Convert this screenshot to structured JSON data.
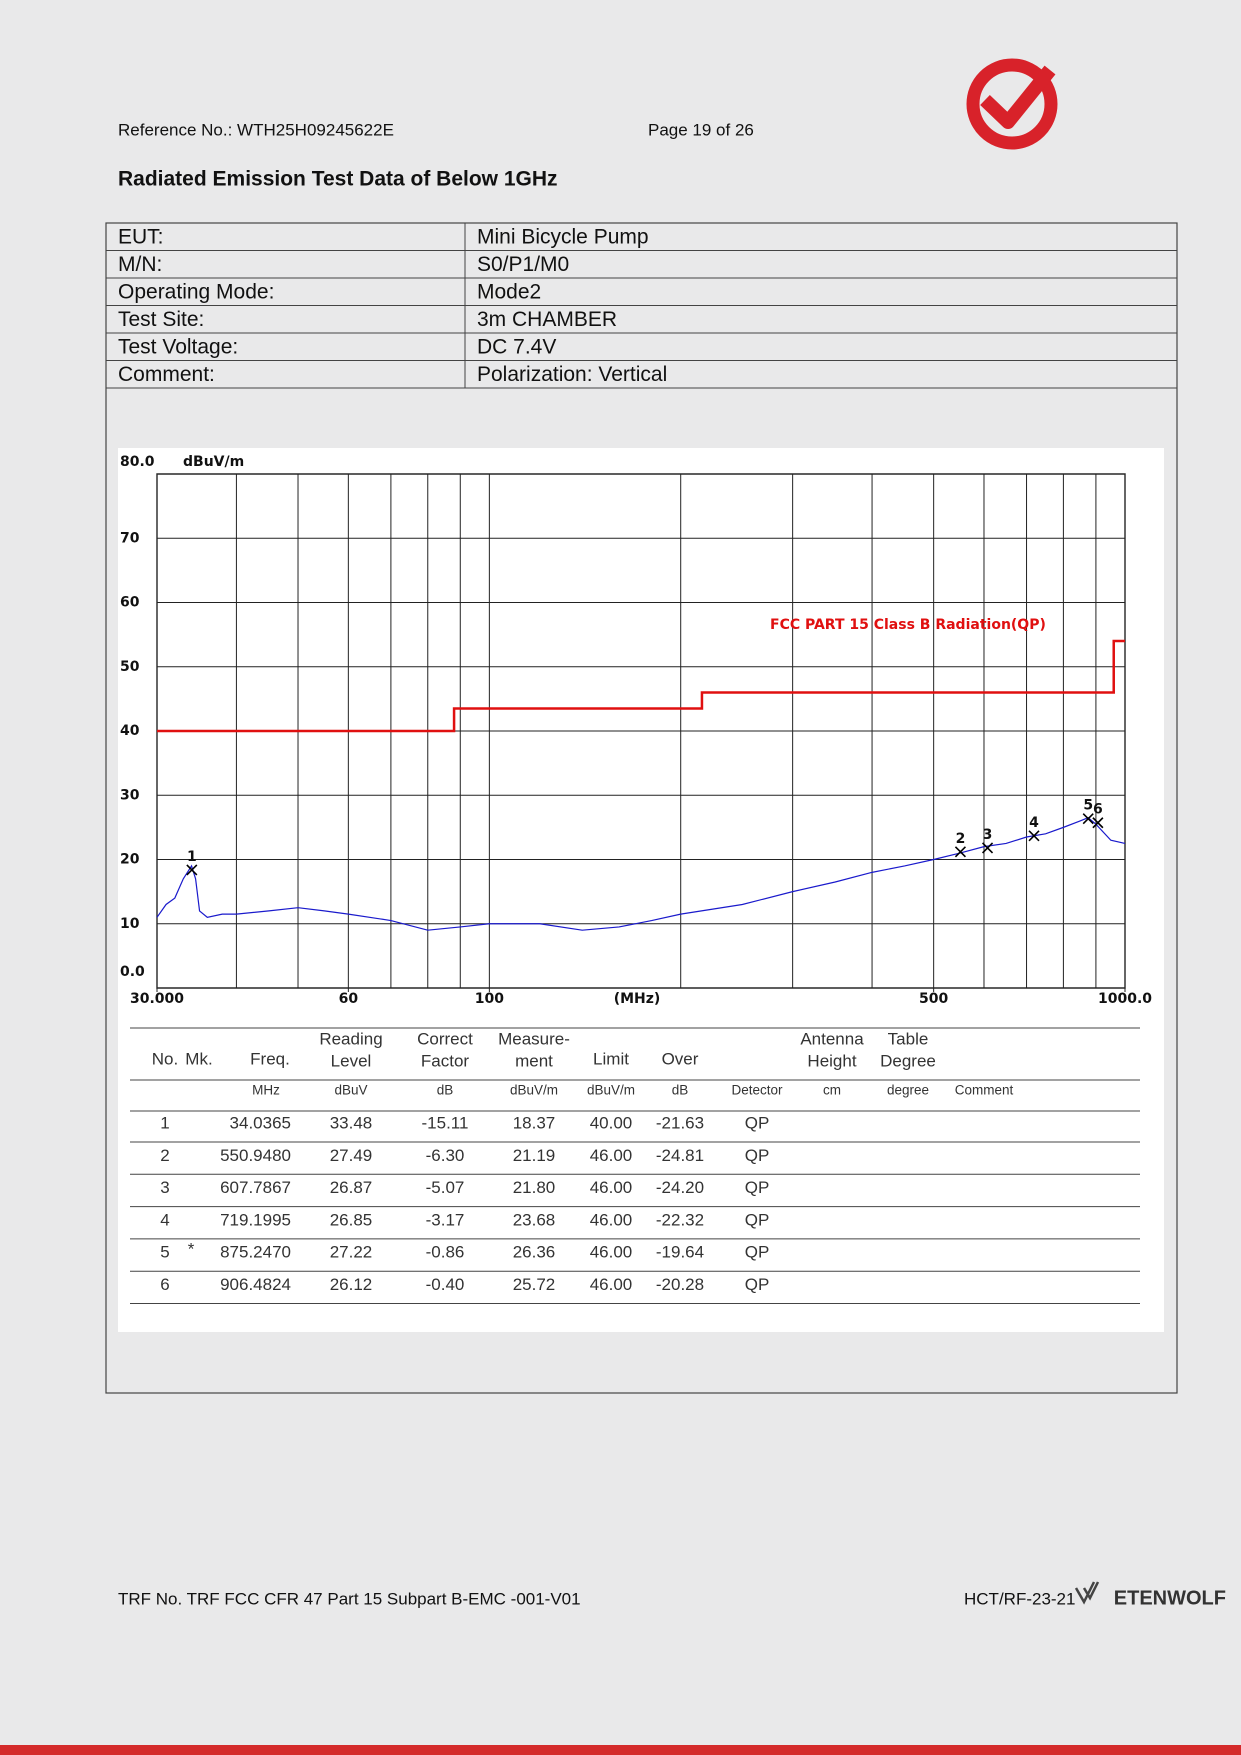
{
  "header": {
    "reference": "Reference No.: WTH25H09245622E",
    "page": "Page 19 of 26",
    "title": "Radiated Emission Test Data of Below 1GHz"
  },
  "info": {
    "rows": [
      [
        "EUT:",
        "Mini Bicycle Pump"
      ],
      [
        "M/N:",
        "S0/P1/M0"
      ],
      [
        "Operating Mode:",
        "Mode2"
      ],
      [
        "Test Site:",
        "3m CHAMBER"
      ],
      [
        "Test Voltage:",
        "DC 7.4V"
      ],
      [
        "Comment:",
        "Polarization: Vertical"
      ]
    ]
  },
  "chart_data": {
    "type": "line",
    "ylabel": "dBuV/m",
    "xlabel": "(MHz)",
    "xlog": true,
    "xlim": [
      30,
      1000
    ],
    "xticks": [
      {
        "value": 30,
        "label": "30.000"
      },
      60,
      100,
      500,
      {
        "value": 1000,
        "label": "1000.0"
      }
    ],
    "xgrid": [
      40,
      50,
      60,
      70,
      80,
      90,
      100,
      200,
      300,
      400,
      500,
      600,
      700,
      800,
      900
    ],
    "ylim": [
      0,
      80
    ],
    "yticks": [
      {
        "value": 0,
        "label": "0.0"
      },
      10,
      20,
      30,
      40,
      50,
      60,
      70,
      {
        "value": 80,
        "label": "80.0"
      }
    ],
    "grid": true,
    "series": [
      {
        "name": "FCC PART 15 Class B Radiation(QP)",
        "color": "#e01010",
        "x": [
          30,
          88,
          88,
          216,
          216,
          960,
          960,
          1000
        ],
        "values": [
          40,
          40,
          43.5,
          43.5,
          46,
          46,
          54,
          54
        ]
      },
      {
        "color": "#1a1acc",
        "x": [
          30,
          31,
          32,
          33,
          34,
          34.5,
          35,
          36,
          38,
          40,
          45,
          50,
          55,
          60,
          70,
          80,
          90,
          100,
          120,
          140,
          160,
          180,
          200,
          250,
          300,
          350,
          400,
          450,
          500,
          550,
          600,
          650,
          700,
          750,
          800,
          850,
          875,
          900,
          950,
          1000
        ],
        "values": [
          11,
          13,
          14,
          17,
          19,
          17,
          12,
          11,
          11.5,
          11.5,
          12,
          12.5,
          12,
          11.5,
          10.5,
          9,
          9.5,
          10,
          10,
          9,
          9.5,
          10.5,
          11.5,
          13,
          15,
          16.5,
          18,
          19,
          20,
          21,
          22,
          22.5,
          23.5,
          24,
          25,
          26,
          26.5,
          25.5,
          23,
          22.5
        ]
      }
    ],
    "markers": {
      "labels": [
        "1",
        "2",
        "3",
        "4",
        "5",
        "6"
      ],
      "x": [
        34.0365,
        550.948,
        607.7867,
        719.1995,
        875.247,
        906.4824
      ],
      "values": [
        18.37,
        21.19,
        21.8,
        23.68,
        26.36,
        25.72
      ]
    }
  },
  "results": {
    "columns": [
      {
        "head": [
          "No."
        ]
      },
      {
        "head": [
          "Mk."
        ]
      },
      {
        "head": [
          "Freq."
        ],
        "unit": "MHz"
      },
      {
        "head": [
          "Reading",
          "Level"
        ],
        "unit": "dBuV"
      },
      {
        "head": [
          "Correct",
          "Factor"
        ],
        "unit": "dB"
      },
      {
        "head": [
          "Measure-",
          "ment"
        ],
        "unit": "dBuV/m"
      },
      {
        "head": [
          "Limit"
        ],
        "unit": "dBuV/m"
      },
      {
        "head": [
          "Over"
        ],
        "unit": "dB"
      },
      {
        "unit": "Detector"
      },
      {
        "head": [
          "Antenna",
          "Height"
        ],
        "unit": "cm"
      },
      {
        "head": [
          "Table",
          "Degree"
        ],
        "unit": "degree"
      },
      {
        "unit": "Comment"
      }
    ],
    "rows": [
      {
        "cells": [
          "1",
          "34.0365",
          "33.48",
          "-15.11",
          "18.37",
          "40.00",
          "-21.63",
          "QP"
        ]
      },
      {
        "cells": [
          "2",
          "550.9480",
          "27.49",
          "-6.30",
          "21.19",
          "46.00",
          "-24.81",
          "QP"
        ]
      },
      {
        "cells": [
          "3",
          "607.7867",
          "26.87",
          "-5.07",
          "21.80",
          "46.00",
          "-24.20",
          "QP"
        ]
      },
      {
        "cells": [
          "4",
          "719.1995",
          "26.85",
          "-3.17",
          "23.68",
          "46.00",
          "-22.32",
          "QP"
        ]
      },
      {
        "cells": [
          "5",
          "875.2470",
          "27.22",
          "-0.86",
          "26.36",
          "46.00",
          "-19.64",
          "QP"
        ],
        "mark": "*"
      },
      {
        "cells": [
          "6",
          "906.4824",
          "26.12",
          "-0.40",
          "25.72",
          "46.00",
          "-20.28",
          "QP"
        ]
      }
    ]
  },
  "footer": {
    "trf": "TRF No. TRF FCC CFR 47 Part 15 Subpart B-EMC -001-V01",
    "code": "HCT/RF-23-21",
    "brand": "ETENWOLF"
  }
}
